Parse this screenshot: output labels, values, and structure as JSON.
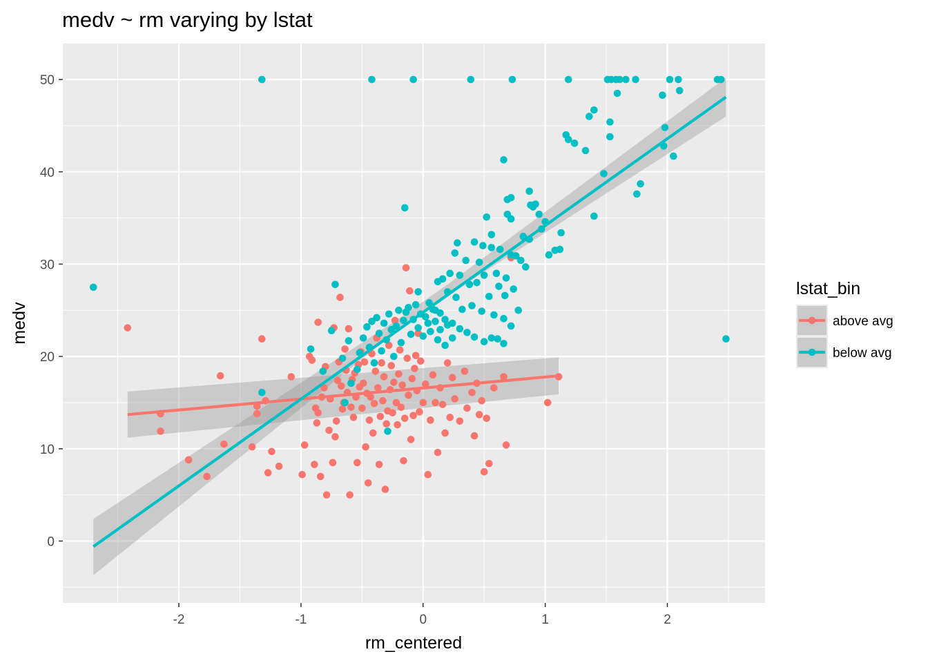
{
  "chart_data": {
    "type": "scatter",
    "title": "medv ~ rm varying by lstat",
    "xlabel": "rm_centered",
    "ylabel": "medv",
    "xlim": [
      -2.95,
      2.8
    ],
    "ylim": [
      -6.7,
      53.9
    ],
    "x_ticks": [
      -2,
      -1,
      0,
      1,
      2
    ],
    "y_ticks": [
      0,
      10,
      20,
      30,
      40,
      50
    ],
    "x_tick_labels": [
      "-2",
      "-1",
      "0",
      "1",
      "2"
    ],
    "y_tick_labels": [
      "0",
      "10",
      "20",
      "30",
      "40",
      "50"
    ],
    "grid": true,
    "legend": {
      "title": "lstat_bin",
      "position": "right"
    },
    "series": [
      {
        "name": "above avg",
        "color": "#f8766d",
        "fit": {
          "x": [
            -2.42,
            1.11
          ],
          "y": [
            13.7,
            17.9
          ]
        },
        "band": {
          "x": [
            -2.42,
            1.11
          ],
          "lower": [
            11.2,
            15.9
          ],
          "upper": [
            16.2,
            19.9
          ]
        },
        "points": [
          [
            -2.42,
            23.1
          ],
          [
            -2.15,
            13.8
          ],
          [
            -2.15,
            11.9
          ],
          [
            -1.92,
            8.8
          ],
          [
            -1.77,
            7.0
          ],
          [
            -1.66,
            17.9
          ],
          [
            -1.63,
            10.5
          ],
          [
            -1.4,
            10.2
          ],
          [
            -1.36,
            13.8
          ],
          [
            -1.36,
            14.6
          ],
          [
            -1.32,
            21.9
          ],
          [
            -1.29,
            15.2
          ],
          [
            -1.27,
            7.4
          ],
          [
            -1.24,
            9.7
          ],
          [
            -1.18,
            8.1
          ],
          [
            -1.08,
            17.8
          ],
          [
            -0.99,
            7.2
          ],
          [
            -0.97,
            10.4
          ],
          [
            -0.93,
            20.0
          ],
          [
            -0.91,
            19.6
          ],
          [
            -0.89,
            8.3
          ],
          [
            -0.87,
            12.8
          ],
          [
            -0.88,
            14.4
          ],
          [
            -0.86,
            13.9
          ],
          [
            -0.86,
            23.7
          ],
          [
            -0.84,
            7.0
          ],
          [
            -0.83,
            15.6
          ],
          [
            -0.81,
            16.6
          ],
          [
            -0.8,
            18.9
          ],
          [
            -0.79,
            5.0
          ],
          [
            -0.77,
            12.0
          ],
          [
            -0.76,
            15.4
          ],
          [
            -0.74,
            8.5
          ],
          [
            -0.73,
            23.1
          ],
          [
            -0.72,
            11.3
          ],
          [
            -0.71,
            13.0
          ],
          [
            -0.7,
            17.4
          ],
          [
            -0.69,
            19.4
          ],
          [
            -0.68,
            26.4
          ],
          [
            -0.67,
            16.8
          ],
          [
            -0.66,
            14.3
          ],
          [
            -0.65,
            15.0
          ],
          [
            -0.64,
            20.8
          ],
          [
            -0.63,
            18.5
          ],
          [
            -0.62,
            16.1
          ],
          [
            -0.61,
            23.0
          ],
          [
            -0.6,
            5.0
          ],
          [
            -0.59,
            14.5
          ],
          [
            -0.58,
            17.5
          ],
          [
            -0.57,
            13.4
          ],
          [
            -0.56,
            18.2
          ],
          [
            -0.55,
            15.6
          ],
          [
            -0.54,
            8.5
          ],
          [
            -0.53,
            19.1
          ],
          [
            -0.52,
            16.7
          ],
          [
            -0.51,
            20.5
          ],
          [
            -0.5,
            14.4
          ],
          [
            -0.49,
            17.1
          ],
          [
            -0.48,
            19.4
          ],
          [
            -0.47,
            10.2
          ],
          [
            -0.46,
            16.0
          ],
          [
            -0.45,
            6.3
          ],
          [
            -0.44,
            13.1
          ],
          [
            -0.43,
            15.6
          ],
          [
            -0.42,
            20.3
          ],
          [
            -0.41,
            11.7
          ],
          [
            -0.4,
            14.9
          ],
          [
            -0.39,
            18.4
          ],
          [
            -0.38,
            22.0
          ],
          [
            -0.37,
            16.6
          ],
          [
            -0.36,
            8.3
          ],
          [
            -0.35,
            13.5
          ],
          [
            -0.34,
            19.3
          ],
          [
            -0.33,
            15.2
          ],
          [
            -0.32,
            17.8
          ],
          [
            -0.31,
            5.6
          ],
          [
            -0.3,
            12.7
          ],
          [
            -0.29,
            14.1
          ],
          [
            -0.28,
            21.2
          ],
          [
            -0.27,
            16.4
          ],
          [
            -0.26,
            19.0
          ],
          [
            -0.25,
            13.9
          ],
          [
            -0.24,
            17.2
          ],
          [
            -0.23,
            23.9
          ],
          [
            -0.22,
            15.0
          ],
          [
            -0.21,
            12.6
          ],
          [
            -0.2,
            18.1
          ],
          [
            -0.19,
            20.7
          ],
          [
            -0.18,
            14.5
          ],
          [
            -0.17,
            16.9
          ],
          [
            -0.16,
            8.7
          ],
          [
            -0.15,
            13.3
          ],
          [
            -0.14,
            29.6
          ],
          [
            -0.13,
            19.8
          ],
          [
            -0.12,
            15.8
          ],
          [
            -0.11,
            27.1
          ],
          [
            -0.1,
            11.0
          ],
          [
            -0.09,
            17.6
          ],
          [
            -0.08,
            13.6
          ],
          [
            -0.07,
            18.7
          ],
          [
            -0.06,
            20.1
          ],
          [
            -0.05,
            16.3
          ],
          [
            -0.04,
            22.5
          ],
          [
            -0.03,
            14.0
          ],
          [
            -0.02,
            19.5
          ],
          [
            0.0,
            15.0
          ],
          [
            0.02,
            17.0
          ],
          [
            0.04,
            7.2
          ],
          [
            0.06,
            13.1
          ],
          [
            0.08,
            18.0
          ],
          [
            0.1,
            15.0
          ],
          [
            0.12,
            9.6
          ],
          [
            0.14,
            16.6
          ],
          [
            0.16,
            14.8
          ],
          [
            0.18,
            11.7
          ],
          [
            0.2,
            19.3
          ],
          [
            0.22,
            13.4
          ],
          [
            0.24,
            17.7
          ],
          [
            0.26,
            15.4
          ],
          [
            0.3,
            13.0
          ],
          [
            0.34,
            18.4
          ],
          [
            0.36,
            14.4
          ],
          [
            0.4,
            16.1
          ],
          [
            0.42,
            11.4
          ],
          [
            0.44,
            17.1
          ],
          [
            0.46,
            13.7
          ],
          [
            0.48,
            15.2
          ],
          [
            0.5,
            7.5
          ],
          [
            0.52,
            13.3
          ],
          [
            0.54,
            8.4
          ],
          [
            0.58,
            16.6
          ],
          [
            0.66,
            17.8
          ],
          [
            0.68,
            10.4
          ],
          [
            0.72,
            30.7
          ],
          [
            1.02,
            15.0
          ],
          [
            1.11,
            17.8
          ]
        ]
      },
      {
        "name": "below avg",
        "color": "#00bfc4",
        "fit": {
          "x": [
            -2.7,
            2.48
          ],
          "y": [
            -0.6,
            48.1
          ]
        },
        "band": {
          "x": [
            -2.7,
            -0.2,
            0.2,
            2.48
          ],
          "lower": [
            -3.7,
            22.9,
            26.6,
            46.0
          ],
          "upper": [
            2.4,
            24.1,
            27.8,
            50.2
          ]
        },
        "points": [
          [
            -2.7,
            27.5
          ],
          [
            2.48,
            21.9
          ],
          [
            -1.32,
            50.0
          ],
          [
            -0.42,
            50.0
          ],
          [
            -0.08,
            50.0
          ],
          [
            0.39,
            50.0
          ],
          [
            0.73,
            50.0
          ],
          [
            1.19,
            50.0
          ],
          [
            1.51,
            50.0
          ],
          [
            1.54,
            50.0
          ],
          [
            1.58,
            50.0
          ],
          [
            1.61,
            50.0
          ],
          [
            1.66,
            50.0
          ],
          [
            1.74,
            50.0
          ],
          [
            2.02,
            50.0
          ],
          [
            2.09,
            50.0
          ],
          [
            2.41,
            50.0
          ],
          [
            2.44,
            50.0
          ],
          [
            1.59,
            48.5
          ],
          [
            1.96,
            48.3
          ],
          [
            2.1,
            48.8
          ],
          [
            1.36,
            46.0
          ],
          [
            1.4,
            46.7
          ],
          [
            1.53,
            45.4
          ],
          [
            1.17,
            44.0
          ],
          [
            1.19,
            43.5
          ],
          [
            1.24,
            43.1
          ],
          [
            1.33,
            42.3
          ],
          [
            1.53,
            43.8
          ],
          [
            1.98,
            44.8
          ],
          [
            1.97,
            42.8
          ],
          [
            2.05,
            41.7
          ],
          [
            1.48,
            39.8
          ],
          [
            1.78,
            38.7
          ],
          [
            1.75,
            37.6
          ],
          [
            1.4,
            35.2
          ],
          [
            0.66,
            41.3
          ],
          [
            0.69,
            37.0
          ],
          [
            0.72,
            37.2
          ],
          [
            0.87,
            37.9
          ],
          [
            0.88,
            36.4
          ],
          [
            0.9,
            36.2
          ],
          [
            0.92,
            36.5
          ],
          [
            0.95,
            35.4
          ],
          [
            1.0,
            34.6
          ],
          [
            0.97,
            33.8
          ],
          [
            1.13,
            33.4
          ],
          [
            1.03,
            31.0
          ],
          [
            1.08,
            31.5
          ],
          [
            1.12,
            31.6
          ],
          [
            0.52,
            35.1
          ],
          [
            0.69,
            35.4
          ],
          [
            0.72,
            34.9
          ],
          [
            0.56,
            33.2
          ],
          [
            0.82,
            33.0
          ],
          [
            0.87,
            32.7
          ],
          [
            0.42,
            32.4
          ],
          [
            0.49,
            32.0
          ],
          [
            0.56,
            31.8
          ],
          [
            0.63,
            31.6
          ],
          [
            0.72,
            31.0
          ],
          [
            0.76,
            30.9
          ],
          [
            0.8,
            30.4
          ],
          [
            0.84,
            29.7
          ],
          [
            0.28,
            32.3
          ],
          [
            0.26,
            31.2
          ],
          [
            0.35,
            30.4
          ],
          [
            0.46,
            30.2
          ],
          [
            0.5,
            28.8
          ],
          [
            0.6,
            29.0
          ],
          [
            0.68,
            28.5
          ],
          [
            0.74,
            27.3
          ],
          [
            0.16,
            28.4
          ],
          [
            0.22,
            29.0
          ],
          [
            0.3,
            28.8
          ],
          [
            0.38,
            27.8
          ],
          [
            0.44,
            28.0
          ],
          [
            0.54,
            26.5
          ],
          [
            0.62,
            27.6
          ],
          [
            0.67,
            26.6
          ],
          [
            0.12,
            28.1
          ],
          [
            0.2,
            27.0
          ],
          [
            0.27,
            26.4
          ],
          [
            0.32,
            25.1
          ],
          [
            0.4,
            25.5
          ],
          [
            0.48,
            24.9
          ],
          [
            0.58,
            24.5
          ],
          [
            0.66,
            24.1
          ],
          [
            0.72,
            23.3
          ],
          [
            0.78,
            25.0
          ],
          [
            0.05,
            25.8
          ],
          [
            0.1,
            25.0
          ],
          [
            0.14,
            24.7
          ],
          [
            0.18,
            24.0
          ],
          [
            0.24,
            23.6
          ],
          [
            0.3,
            23.0
          ],
          [
            0.36,
            22.6
          ],
          [
            0.42,
            22.1
          ],
          [
            0.5,
            21.6
          ],
          [
            0.56,
            22.0
          ],
          [
            0.61,
            21.9
          ],
          [
            0.66,
            21.4
          ],
          [
            -0.15,
            36.1
          ],
          [
            -0.04,
            27.0
          ],
          [
            -0.72,
            27.8
          ],
          [
            -0.75,
            22.8
          ],
          [
            -0.92,
            20.8
          ],
          [
            -0.82,
            18.4
          ],
          [
            -0.66,
            19.8
          ],
          [
            -0.61,
            21.7
          ],
          [
            -0.59,
            17.1
          ],
          [
            -0.54,
            18.6
          ],
          [
            -0.52,
            20.4
          ],
          [
            -0.49,
            22.0
          ],
          [
            -0.46,
            23.2
          ],
          [
            -0.44,
            21.0
          ],
          [
            -0.42,
            23.8
          ],
          [
            -0.4,
            19.3
          ],
          [
            -0.38,
            24.2
          ],
          [
            -0.36,
            22.5
          ],
          [
            -0.34,
            20.6
          ],
          [
            -0.32,
            23.6
          ],
          [
            -0.3,
            21.8
          ],
          [
            -0.28,
            24.6
          ],
          [
            -0.26,
            22.9
          ],
          [
            -0.24,
            20.0
          ],
          [
            -0.22,
            23.3
          ],
          [
            -0.2,
            25.0
          ],
          [
            -0.18,
            21.5
          ],
          [
            -0.16,
            23.9
          ],
          [
            -0.14,
            24.8
          ],
          [
            -0.12,
            25.3
          ],
          [
            -0.1,
            22.4
          ],
          [
            -0.08,
            24.0
          ],
          [
            -0.06,
            25.6
          ],
          [
            -0.04,
            23.1
          ],
          [
            -0.02,
            24.6
          ],
          [
            0.0,
            22.2
          ],
          [
            0.02,
            24.3
          ],
          [
            0.04,
            23.6
          ],
          [
            0.06,
            22.7
          ],
          [
            0.08,
            25.1
          ],
          [
            0.1,
            23.8
          ],
          [
            0.12,
            21.8
          ],
          [
            0.14,
            22.9
          ],
          [
            0.18,
            21.2
          ],
          [
            0.2,
            23.4
          ],
          [
            0.24,
            22.0
          ],
          [
            -0.29,
            11.9
          ],
          [
            -0.64,
            15.0
          ],
          [
            -1.32,
            16.1
          ]
        ]
      }
    ]
  }
}
